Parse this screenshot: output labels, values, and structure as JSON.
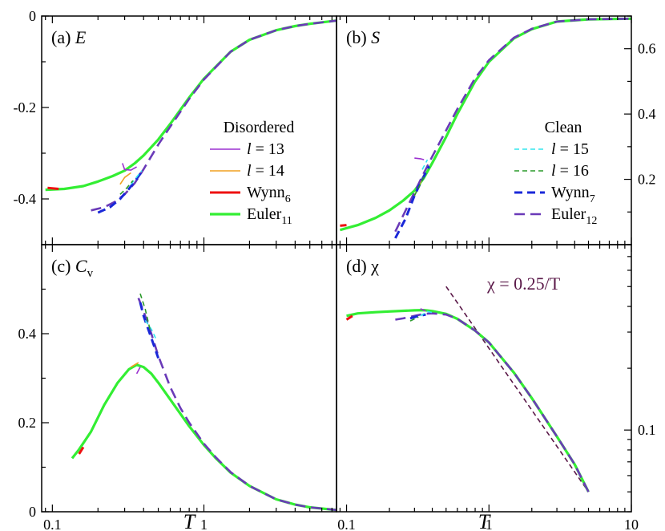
{
  "colors": {
    "l13": "#9b30d0",
    "l14": "#f0a020",
    "wynn6": "#ee1111",
    "euler11": "#33ee33",
    "l15": "#33e6ee",
    "l16": "#2a9a2a",
    "wynn7": "#1a28d8",
    "euler12": "#6a3ab8",
    "ref": "#5a1848"
  },
  "legend": {
    "disordered": {
      "title": "Disordered",
      "items": [
        {
          "series": "l13",
          "pre": "l",
          "text": " = 13",
          "sub": ""
        },
        {
          "series": "l14",
          "pre": "l",
          "text": " = 14",
          "sub": ""
        },
        {
          "series": "wynn6",
          "pre": "",
          "text": "Wynn",
          "sub": "6"
        },
        {
          "series": "euler11",
          "pre": "",
          "text": "Euler",
          "sub": "11"
        }
      ]
    },
    "clean": {
      "title": "Clean",
      "items": [
        {
          "series": "l15",
          "pre": "l",
          "text": " = 15",
          "sub": ""
        },
        {
          "series": "l16",
          "pre": "l",
          "text": " = 16",
          "sub": ""
        },
        {
          "series": "wynn7",
          "pre": "",
          "text": "Wynn",
          "sub": "7"
        },
        {
          "series": "euler12",
          "pre": "",
          "text": "Euler",
          "sub": "12"
        }
      ]
    }
  },
  "chart_data": [
    {
      "id": "a",
      "type": "line",
      "label": "(a) ",
      "symbol": "E",
      "sub": "",
      "xscale": "log",
      "xlim": [
        0.085,
        7.5
      ],
      "ylim": [
        -0.5,
        0
      ],
      "yticks": [
        0,
        -0.2,
        -0.4
      ],
      "yticklabels": [
        "0",
        "-0.2",
        "-0.4"
      ],
      "ytick_side": "left",
      "xticks": [
        0.1,
        1
      ],
      "xticklabels": [],
      "series": [
        {
          "key": "euler11",
          "x": [
            0.09,
            0.12,
            0.16,
            0.2,
            0.25,
            0.3,
            0.35,
            0.4,
            0.5,
            0.6,
            0.8,
            1,
            1.5,
            2,
            3,
            4,
            5,
            7.5
          ],
          "y": [
            -0.38,
            -0.378,
            -0.372,
            -0.362,
            -0.35,
            -0.338,
            -0.322,
            -0.305,
            -0.27,
            -0.236,
            -0.178,
            -0.137,
            -0.078,
            -0.052,
            -0.031,
            -0.022,
            -0.017,
            -0.01
          ]
        },
        {
          "key": "wynn6",
          "x": [
            0.093,
            0.11
          ],
          "y": [
            -0.376,
            -0.378
          ]
        },
        {
          "key": "l13",
          "x": [
            0.29,
            0.3,
            0.33,
            0.36
          ],
          "y": [
            -0.322,
            -0.336,
            -0.337,
            -0.33
          ]
        },
        {
          "key": "l14",
          "x": [
            0.28,
            0.3,
            0.33
          ],
          "y": [
            -0.368,
            -0.353,
            -0.343
          ]
        },
        {
          "key": "euler12",
          "x": [
            0.18,
            0.22,
            0.26,
            0.3,
            0.35,
            0.4,
            0.5,
            0.6,
            0.8,
            1,
            1.5,
            2,
            3,
            4,
            5,
            7.5
          ],
          "y": [
            -0.425,
            -0.418,
            -0.406,
            -0.39,
            -0.365,
            -0.335,
            -0.281,
            -0.242,
            -0.181,
            -0.139,
            -0.078,
            -0.052,
            -0.031,
            -0.022,
            -0.017,
            -0.01
          ]
        },
        {
          "key": "wynn7",
          "x": [
            0.2,
            0.24,
            0.28,
            0.32,
            0.36,
            0.4
          ],
          "y": [
            -0.43,
            -0.418,
            -0.4,
            -0.378,
            -0.356,
            -0.335
          ]
        },
        {
          "key": "l15",
          "x": [
            0.33,
            0.36,
            0.39
          ],
          "y": [
            -0.368,
            -0.352,
            -0.338
          ]
        },
        {
          "key": "l16",
          "x": [
            0.28,
            0.31,
            0.34
          ],
          "y": [
            -0.39,
            -0.376,
            -0.36
          ]
        }
      ]
    },
    {
      "id": "b",
      "type": "line",
      "label": "(b) ",
      "symbol": "S",
      "sub": "",
      "xscale": "log",
      "xlim": [
        0.085,
        10
      ],
      "ylim": [
        0,
        0.7
      ],
      "yticks": [
        0.2,
        0.4,
        0.6
      ],
      "yticklabels": [
        "0.2",
        "0.4",
        "0.6"
      ],
      "ytick_side": "right",
      "xticks": [
        0.1,
        1,
        10
      ],
      "xticklabels": [],
      "series": [
        {
          "key": "euler11",
          "x": [
            0.09,
            0.12,
            0.16,
            0.2,
            0.25,
            0.3,
            0.35,
            0.4,
            0.5,
            0.6,
            0.8,
            1,
            1.5,
            2,
            3,
            5,
            10
          ],
          "y": [
            0.045,
            0.06,
            0.082,
            0.105,
            0.135,
            0.165,
            0.205,
            0.25,
            0.33,
            0.4,
            0.5,
            0.56,
            0.632,
            0.66,
            0.683,
            0.69,
            0.692
          ]
        },
        {
          "key": "wynn6",
          "x": [
            0.09,
            0.1
          ],
          "y": [
            0.058,
            0.06
          ]
        },
        {
          "key": "l13",
          "x": [
            0.3,
            0.33,
            0.35
          ],
          "y": [
            0.265,
            0.263,
            0.26
          ]
        },
        {
          "key": "l14",
          "x": [
            0.3,
            0.33,
            0.35
          ],
          "y": [
            0.15,
            0.19,
            0.215
          ]
        },
        {
          "key": "euler12",
          "x": [
            0.22,
            0.25,
            0.3,
            0.35,
            0.4,
            0.5,
            0.6,
            0.8,
            1,
            1.5,
            2,
            3,
            5,
            10
          ],
          "y": [
            0.04,
            0.09,
            0.16,
            0.22,
            0.27,
            0.35,
            0.415,
            0.51,
            0.565,
            0.634,
            0.661,
            0.683,
            0.69,
            0.692
          ]
        },
        {
          "key": "wynn7",
          "x": [
            0.22,
            0.26,
            0.3,
            0.34,
            0.38
          ],
          "y": [
            0.02,
            0.08,
            0.15,
            0.2,
            0.24
          ]
        },
        {
          "key": "l15",
          "x": [
            0.34,
            0.37
          ],
          "y": [
            0.23,
            0.26
          ]
        },
        {
          "key": "l16",
          "x": [
            0.3,
            0.33,
            0.35
          ],
          "y": [
            0.15,
            0.185,
            0.21
          ]
        }
      ]
    },
    {
      "id": "c",
      "type": "line",
      "label": "(c) ",
      "symbol": "C",
      "sub": "v",
      "xscale": "log",
      "xlim": [
        0.085,
        7.5
      ],
      "ylim": [
        0,
        0.6
      ],
      "yticks": [
        0,
        0.2,
        0.4
      ],
      "yticklabels": [
        "0",
        "0.2",
        "0.4"
      ],
      "ytick_side": "left",
      "xticks": [
        0.1,
        1
      ],
      "xticklabels": [
        "0.1",
        "1"
      ],
      "series": [
        {
          "key": "euler11",
          "x": [
            0.135,
            0.15,
            0.18,
            0.22,
            0.27,
            0.32,
            0.36,
            0.4,
            0.45,
            0.5,
            0.6,
            0.7,
            0.8,
            1,
            1.2,
            1.5,
            2,
            3,
            4,
            5,
            7.5
          ],
          "y": [
            0.12,
            0.14,
            0.18,
            0.24,
            0.29,
            0.32,
            0.33,
            0.325,
            0.31,
            0.29,
            0.252,
            0.22,
            0.192,
            0.15,
            0.12,
            0.088,
            0.058,
            0.028,
            0.016,
            0.01,
            0.004
          ]
        },
        {
          "key": "wynn6",
          "x": [
            0.15,
            0.16
          ],
          "y": [
            0.13,
            0.145
          ]
        },
        {
          "key": "l13",
          "x": [
            0.36,
            0.38
          ],
          "y": [
            0.31,
            0.325
          ]
        },
        {
          "key": "l14",
          "x": [
            0.33,
            0.37
          ],
          "y": [
            0.325,
            0.335
          ]
        },
        {
          "key": "euler12",
          "x": [
            0.37,
            0.4,
            0.45,
            0.5,
            0.6,
            0.7,
            0.8,
            1,
            1.2,
            1.5,
            2,
            3,
            4,
            5,
            7.5
          ],
          "y": [
            0.48,
            0.45,
            0.4,
            0.35,
            0.28,
            0.233,
            0.2,
            0.153,
            0.122,
            0.089,
            0.058,
            0.028,
            0.016,
            0.01,
            0.004
          ]
        },
        {
          "key": "wynn7",
          "x": [
            0.38,
            0.4,
            0.45,
            0.5
          ],
          "y": [
            0.47,
            0.44,
            0.39,
            0.345
          ]
        },
        {
          "key": "l15",
          "x": [
            0.41,
            0.45,
            0.48
          ],
          "y": [
            0.43,
            0.41,
            0.39
          ]
        },
        {
          "key": "l16",
          "x": [
            0.38,
            0.41,
            0.44
          ],
          "y": [
            0.49,
            0.455,
            0.41
          ]
        }
      ]
    },
    {
      "id": "d",
      "type": "line",
      "label": "(d) ",
      "symbol": "χ",
      "sub": "",
      "xscale": "log",
      "yscale": "log",
      "xlim": [
        0.085,
        10
      ],
      "ylim": [
        0.04,
        0.8
      ],
      "yticks": [
        0.1
      ],
      "yticklabels": [
        "0.1"
      ],
      "ytick_side": "right",
      "xticks": [
        0.1,
        1,
        10
      ],
      "xticklabels": [
        "0.1",
        "1",
        "10"
      ],
      "annotation": {
        "text": "χ = 0.25/T"
      },
      "series": [
        {
          "key": "ref",
          "dash": true,
          "x": [
            0.5,
            5
          ],
          "y": [
            0.5,
            0.05
          ]
        },
        {
          "key": "euler11",
          "x": [
            0.1,
            0.12,
            0.16,
            0.2,
            0.25,
            0.3,
            0.35,
            0.4,
            0.5,
            0.6,
            0.8,
            1,
            1.5,
            2,
            3,
            4,
            5
          ],
          "y": [
            0.36,
            0.37,
            0.375,
            0.378,
            0.381,
            0.383,
            0.384,
            0.38,
            0.368,
            0.348,
            0.305,
            0.267,
            0.19,
            0.143,
            0.093,
            0.068,
            0.05
          ]
        },
        {
          "key": "wynn6",
          "x": [
            0.1,
            0.11
          ],
          "y": [
            0.345,
            0.36
          ]
        },
        {
          "key": "l13",
          "x": [
            0.33,
            0.36
          ],
          "y": [
            0.39,
            0.38
          ]
        },
        {
          "key": "euler12",
          "x": [
            0.22,
            0.25,
            0.3,
            0.35,
            0.4,
            0.5,
            0.6,
            0.8,
            1,
            1.5,
            2,
            3,
            4,
            5
          ],
          "y": [
            0.345,
            0.35,
            0.36,
            0.368,
            0.37,
            0.365,
            0.348,
            0.305,
            0.267,
            0.19,
            0.143,
            0.093,
            0.068,
            0.05
          ]
        },
        {
          "key": "wynn7",
          "x": [
            0.28,
            0.32,
            0.36
          ],
          "y": [
            0.35,
            0.36,
            0.365
          ]
        },
        {
          "key": "l15",
          "x": [
            0.33,
            0.37,
            0.41
          ],
          "y": [
            0.36,
            0.378,
            0.372
          ]
        },
        {
          "key": "l16",
          "x": [
            0.28,
            0.32
          ],
          "y": [
            0.34,
            0.355
          ]
        }
      ]
    }
  ],
  "xlabel": "T"
}
